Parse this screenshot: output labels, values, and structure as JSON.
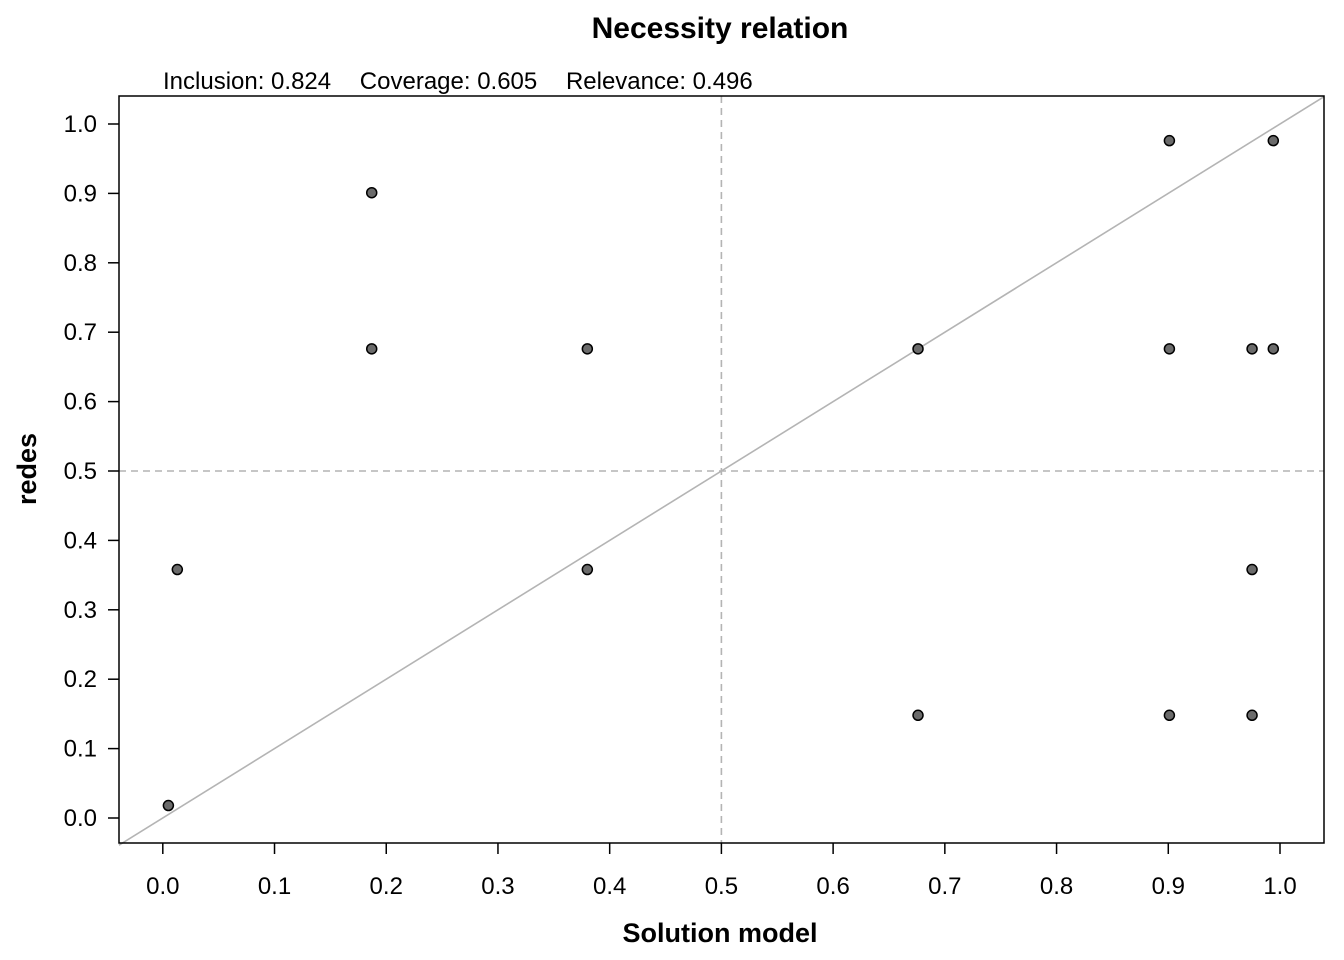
{
  "chart_data": {
    "type": "scatter",
    "title": "Necessity relation",
    "subtitle_parts": [
      "Inclusion: 0.824",
      "Coverage: 0.605",
      "Relevance: 0.496"
    ],
    "xlabel": "Solution model",
    "ylabel": "redes",
    "xlim": [
      0,
      1
    ],
    "ylim": [
      0,
      1
    ],
    "x_ticks": [
      "0.0",
      "0.1",
      "0.2",
      "0.3",
      "0.4",
      "0.5",
      "0.6",
      "0.7",
      "0.8",
      "0.9",
      "1.0"
    ],
    "y_ticks": [
      "0.0",
      "0.1",
      "0.2",
      "0.3",
      "0.4",
      "0.5",
      "0.6",
      "0.7",
      "0.8",
      "0.9",
      "1.0"
    ],
    "reference_lines": {
      "diagonal": true,
      "vertical": 0.5,
      "horizontal": 0.5
    },
    "grid": false,
    "points": [
      {
        "x": 0.005,
        "y": 0.018
      },
      {
        "x": 0.013,
        "y": 0.358
      },
      {
        "x": 0.187,
        "y": 0.901
      },
      {
        "x": 0.187,
        "y": 0.676
      },
      {
        "x": 0.38,
        "y": 0.676
      },
      {
        "x": 0.38,
        "y": 0.358
      },
      {
        "x": 0.676,
        "y": 0.676
      },
      {
        "x": 0.676,
        "y": 0.148
      },
      {
        "x": 0.901,
        "y": 0.976
      },
      {
        "x": 0.901,
        "y": 0.676
      },
      {
        "x": 0.901,
        "y": 0.148
      },
      {
        "x": 0.975,
        "y": 0.676
      },
      {
        "x": 0.975,
        "y": 0.358
      },
      {
        "x": 0.975,
        "y": 0.148
      },
      {
        "x": 0.994,
        "y": 0.976
      },
      {
        "x": 0.994,
        "y": 0.676
      }
    ],
    "colors": {
      "point_fill": "#6b6b6b",
      "point_stroke": "#000000",
      "reference_line": "#b4b4b4",
      "axis": "#000000"
    }
  }
}
